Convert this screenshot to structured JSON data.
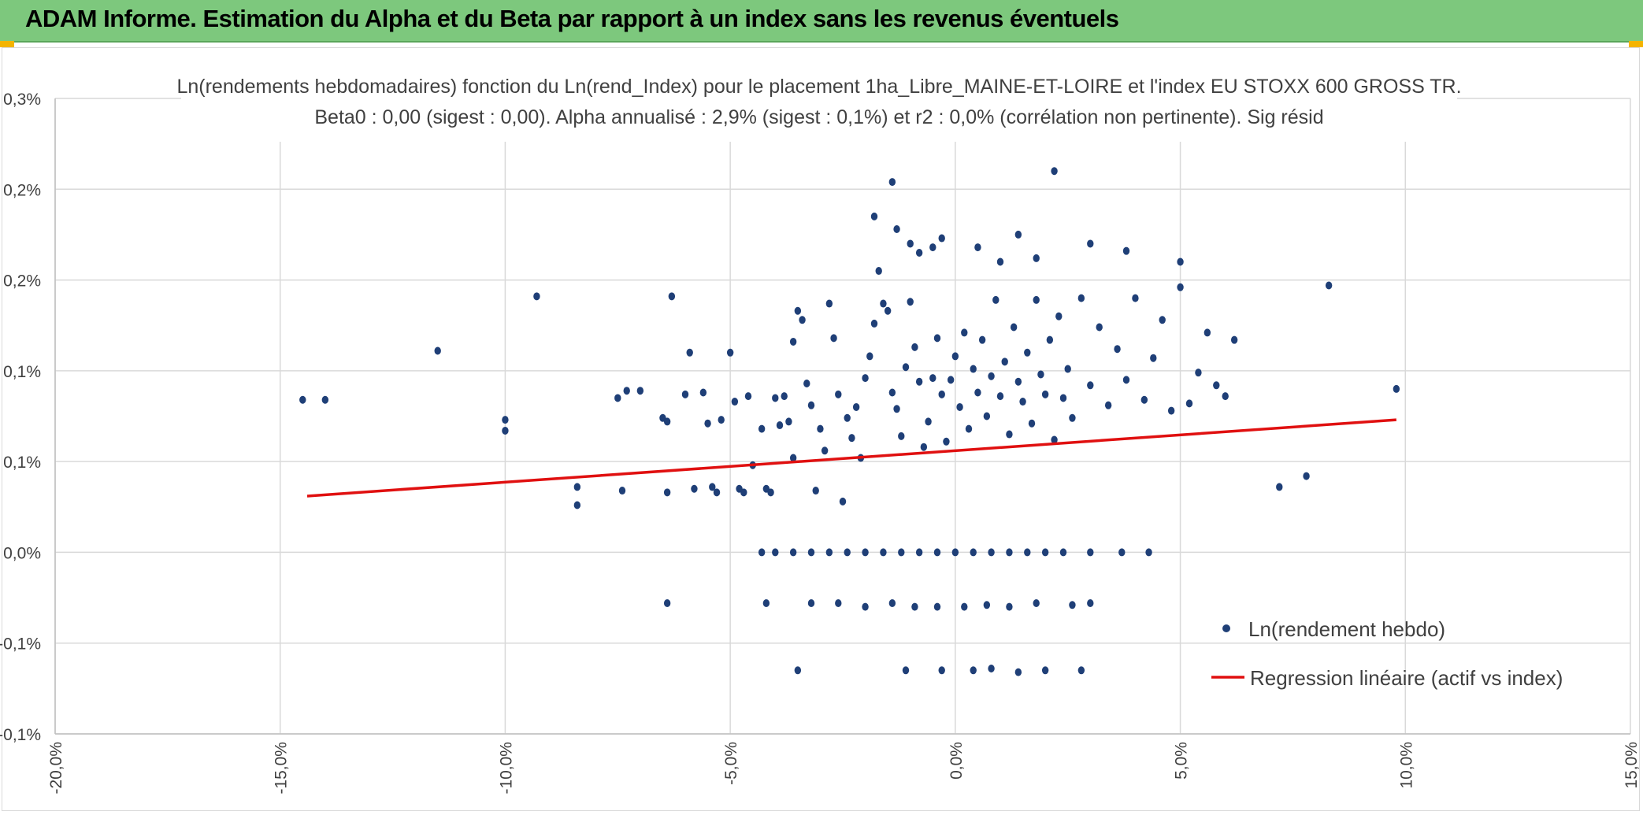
{
  "banner": {
    "title": "ADAM Informe. Estimation du Alpha et du Beta par rapport à un index sans les revenus éventuels",
    "color": "#7dc87d"
  },
  "chart_data": {
    "type": "scatter",
    "title": "Ln(rendements hebdomadaires) fonction du Ln(rend_Index) pour le placement 1ha_Libre_MAINE-ET-LOIRE et l'index EU STOXX 600 GROSS TR.",
    "subtitle": "Beta0 : 0,00 (sigest : 0,00). Alpha annualisé : 2,9% (sigest : 0,1%) et r2 : 0,0% (corrélation non pertinente). Sig résid",
    "xlabel": "",
    "ylabel": "",
    "xlim": [
      -0.2,
      0.15
    ],
    "ylim": [
      -0.001,
      0.0025
    ],
    "x_ticks": [
      "-20,0%",
      "-15,0%",
      "-10,0%",
      "-5,0%",
      "0,0%",
      "5,0%",
      "10,0%",
      "15,0%"
    ],
    "y_ticks": [
      "-0,1%",
      "-0,1%",
      "0,0%",
      "0,1%",
      "0,1%",
      "0,2%",
      "0,2%",
      "0,3%"
    ],
    "grid": true,
    "legend_position": "bottom-right",
    "series": [
      {
        "name": "Ln(rendement hebdo)",
        "kind": "scatter",
        "color": "#1f3f77",
        "points": [
          [
            -0.145,
            0.00084
          ],
          [
            -0.14,
            0.00084
          ],
          [
            -0.115,
            0.00111
          ],
          [
            -0.093,
            0.00141
          ],
          [
            -0.1,
            0.00073
          ],
          [
            -0.1,
            0.00067
          ],
          [
            -0.084,
            0.00036
          ],
          [
            -0.084,
            0.00026
          ],
          [
            -0.075,
            0.00085
          ],
          [
            -0.073,
            0.00089
          ],
          [
            -0.07,
            0.00089
          ],
          [
            -0.074,
            0.00034
          ],
          [
            -0.065,
            0.00074
          ],
          [
            -0.064,
            0.00072
          ],
          [
            -0.063,
            0.00141
          ],
          [
            -0.064,
            0.00033
          ],
          [
            -0.06,
            0.00087
          ],
          [
            -0.059,
            0.0011
          ],
          [
            -0.058,
            0.00035
          ],
          [
            -0.056,
            0.00088
          ],
          [
            -0.055,
            0.00071
          ],
          [
            -0.054,
            0.00036
          ],
          [
            -0.053,
            0.00033
          ],
          [
            -0.052,
            0.00073
          ],
          [
            -0.05,
            0.0011
          ],
          [
            -0.049,
            0.00083
          ],
          [
            -0.048,
            0.00035
          ],
          [
            -0.047,
            0.00033
          ],
          [
            -0.046,
            0.00086
          ],
          [
            -0.045,
            0.00048
          ],
          [
            -0.043,
            0.00068
          ],
          [
            -0.042,
            0.00035
          ],
          [
            -0.041,
            0.00033
          ],
          [
            -0.04,
            0.00085
          ],
          [
            -0.039,
            0.0007
          ],
          [
            -0.038,
            0.00086
          ],
          [
            -0.037,
            0.00072
          ],
          [
            -0.036,
            0.00052
          ],
          [
            -0.036,
            0.00116
          ],
          [
            -0.035,
            0.00133
          ],
          [
            -0.034,
            0.00128
          ],
          [
            -0.033,
            0.00093
          ],
          [
            -0.032,
            0.00081
          ],
          [
            -0.031,
            0.00034
          ],
          [
            -0.03,
            0.00068
          ],
          [
            -0.029,
            0.00056
          ],
          [
            -0.028,
            0.00137
          ],
          [
            -0.027,
            0.00118
          ],
          [
            -0.026,
            0.00087
          ],
          [
            -0.025,
            0.00028
          ],
          [
            -0.024,
            0.00074
          ],
          [
            -0.023,
            0.00063
          ],
          [
            -0.022,
            0.0008
          ],
          [
            -0.021,
            0.00052
          ],
          [
            -0.02,
            0.00096
          ],
          [
            -0.019,
            0.00108
          ],
          [
            -0.018,
            0.00126
          ],
          [
            -0.017,
            0.00155
          ],
          [
            -0.016,
            0.00137
          ],
          [
            -0.015,
            0.00133
          ],
          [
            -0.014,
            0.00088
          ],
          [
            -0.013,
            0.00079
          ],
          [
            -0.012,
            0.00064
          ],
          [
            -0.011,
            0.00102
          ],
          [
            -0.01,
            0.00138
          ],
          [
            -0.009,
            0.00113
          ],
          [
            -0.008,
            0.00094
          ],
          [
            -0.007,
            0.00058
          ],
          [
            -0.006,
            0.00072
          ],
          [
            -0.005,
            0.00096
          ],
          [
            -0.004,
            0.00118
          ],
          [
            -0.003,
            0.00087
          ],
          [
            -0.002,
            0.00061
          ],
          [
            -0.001,
            0.00095
          ],
          [
            0.0,
            0.00108
          ],
          [
            0.001,
            0.0008
          ],
          [
            0.002,
            0.00121
          ],
          [
            0.003,
            0.00068
          ],
          [
            0.004,
            0.00101
          ],
          [
            0.005,
            0.00088
          ],
          [
            0.006,
            0.00117
          ],
          [
            0.007,
            0.00075
          ],
          [
            0.008,
            0.00097
          ],
          [
            0.009,
            0.00139
          ],
          [
            0.01,
            0.00086
          ],
          [
            0.011,
            0.00105
          ],
          [
            0.012,
            0.00065
          ],
          [
            0.013,
            0.00124
          ],
          [
            0.014,
            0.00094
          ],
          [
            0.015,
            0.00083
          ],
          [
            0.016,
            0.0011
          ],
          [
            0.017,
            0.00071
          ],
          [
            0.018,
            0.00139
          ],
          [
            0.019,
            0.00098
          ],
          [
            0.02,
            0.00087
          ],
          [
            0.021,
            0.00117
          ],
          [
            0.022,
            0.00062
          ],
          [
            0.023,
            0.0013
          ],
          [
            0.024,
            0.00085
          ],
          [
            0.025,
            0.00101
          ],
          [
            0.026,
            0.00074
          ],
          [
            0.028,
            0.0014
          ],
          [
            0.03,
            0.00092
          ],
          [
            0.032,
            0.00124
          ],
          [
            0.034,
            0.00081
          ],
          [
            0.036,
            0.00112
          ],
          [
            0.038,
            0.00095
          ],
          [
            0.04,
            0.0014
          ],
          [
            0.042,
            0.00084
          ],
          [
            0.044,
            0.00107
          ],
          [
            0.046,
            0.00128
          ],
          [
            0.048,
            0.00078
          ],
          [
            0.05,
            0.00146
          ],
          [
            0.052,
            0.00082
          ],
          [
            0.054,
            0.00099
          ],
          [
            0.056,
            0.00121
          ],
          [
            0.058,
            0.00092
          ],
          [
            0.06,
            0.00086
          ],
          [
            0.062,
            0.00117
          ],
          [
            0.072,
            0.00036
          ],
          [
            0.078,
            0.00042
          ],
          [
            0.083,
            0.00147
          ],
          [
            0.098,
            0.0009
          ],
          [
            -0.018,
            0.00185
          ],
          [
            -0.014,
            0.00204
          ],
          [
            -0.013,
            0.00178
          ],
          [
            -0.01,
            0.0017
          ],
          [
            -0.008,
            0.00165
          ],
          [
            -0.005,
            0.00168
          ],
          [
            -0.003,
            0.00173
          ],
          [
            0.005,
            0.00168
          ],
          [
            0.01,
            0.0016
          ],
          [
            0.014,
            0.00175
          ],
          [
            0.022,
            0.0021
          ],
          [
            0.018,
            0.00162
          ],
          [
            0.03,
            0.0017
          ],
          [
            0.038,
            0.00166
          ],
          [
            0.05,
            0.0016
          ],
          [
            -0.043,
            0.0
          ],
          [
            -0.04,
            0.0
          ],
          [
            -0.036,
            0.0
          ],
          [
            -0.032,
            0.0
          ],
          [
            -0.028,
            0.0
          ],
          [
            -0.024,
            0.0
          ],
          [
            -0.02,
            0.0
          ],
          [
            -0.016,
            0.0
          ],
          [
            -0.012,
            0.0
          ],
          [
            -0.008,
            0.0
          ],
          [
            -0.004,
            0.0
          ],
          [
            0.0,
            0.0
          ],
          [
            0.004,
            0.0
          ],
          [
            0.008,
            0.0
          ],
          [
            0.012,
            0.0
          ],
          [
            0.016,
            0.0
          ],
          [
            0.02,
            0.0
          ],
          [
            0.024,
            0.0
          ],
          [
            0.03,
            0.0
          ],
          [
            0.037,
            0.0
          ],
          [
            0.043,
            0.0
          ],
          [
            -0.064,
            -0.00028
          ],
          [
            -0.042,
            -0.00028
          ],
          [
            -0.032,
            -0.00028
          ],
          [
            -0.026,
            -0.00028
          ],
          [
            -0.02,
            -0.0003
          ],
          [
            -0.014,
            -0.00028
          ],
          [
            -0.009,
            -0.0003
          ],
          [
            -0.004,
            -0.0003
          ],
          [
            0.002,
            -0.0003
          ],
          [
            0.007,
            -0.00029
          ],
          [
            0.012,
            -0.0003
          ],
          [
            0.018,
            -0.00028
          ],
          [
            0.026,
            -0.00029
          ],
          [
            0.03,
            -0.00028
          ],
          [
            -0.035,
            -0.00065
          ],
          [
            -0.011,
            -0.00065
          ],
          [
            -0.003,
            -0.00065
          ],
          [
            0.004,
            -0.00065
          ],
          [
            0.008,
            -0.00064
          ],
          [
            0.014,
            -0.00066
          ],
          [
            0.02,
            -0.00065
          ],
          [
            0.028,
            -0.00065
          ]
        ]
      },
      {
        "name": "Regression linéaire (actif vs index)",
        "kind": "line",
        "color": "#e01010",
        "points": [
          [
            -0.144,
            0.00031
          ],
          [
            0.098,
            0.00073
          ]
        ]
      }
    ]
  }
}
